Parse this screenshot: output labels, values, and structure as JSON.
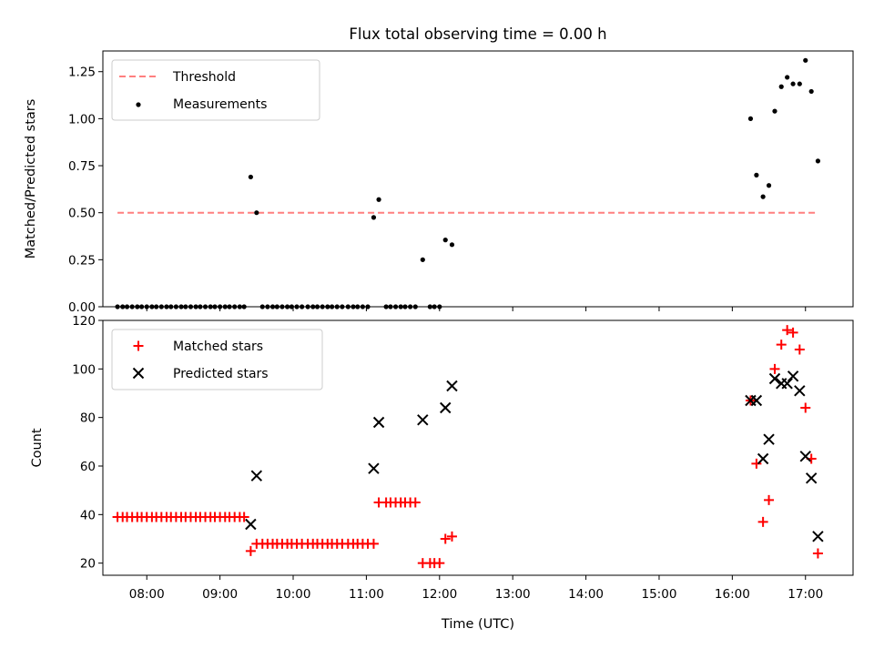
{
  "chart_data": [
    {
      "type": "scatter",
      "title": "Flux total observing time = 0.00 h",
      "ylabel": "Matched/Predicted stars",
      "ylim": [
        0,
        1.36
      ],
      "yticks": [
        0.0,
        0.25,
        0.5,
        0.75,
        1.0,
        1.25
      ],
      "yticklabels": [
        "0.00",
        "0.25",
        "0.50",
        "0.75",
        "1.00",
        "1.25"
      ],
      "xlim": [
        7.4,
        17.65
      ],
      "legend_position": "top-left",
      "threshold": {
        "name": "Threshold",
        "value": 0.5,
        "x_range": [
          7.6,
          17.15
        ],
        "color": "#ff7f7f"
      },
      "series": [
        {
          "name": "Measurements",
          "color": "#000000",
          "x": [
            7.6,
            7.67,
            7.73,
            7.8,
            7.87,
            7.93,
            8.0,
            8.07,
            8.13,
            8.2,
            8.27,
            8.33,
            8.4,
            8.47,
            8.53,
            8.6,
            8.67,
            8.73,
            8.8,
            8.87,
            8.93,
            9.0,
            9.07,
            9.13,
            9.2,
            9.27,
            9.33,
            9.42,
            9.5,
            9.58,
            9.65,
            9.72,
            9.78,
            9.85,
            9.92,
            9.98,
            10.05,
            10.12,
            10.2,
            10.27,
            10.33,
            10.4,
            10.47,
            10.53,
            10.6,
            10.67,
            10.75,
            10.82,
            10.88,
            10.95,
            11.02,
            11.1,
            11.17,
            11.27,
            11.33,
            11.4,
            11.47,
            11.53,
            11.6,
            11.67,
            11.77,
            11.87,
            11.93,
            12.0,
            12.08,
            12.17,
            16.25,
            16.33,
            16.42,
            16.5,
            16.58,
            16.67,
            16.75,
            16.83,
            16.92,
            17.0,
            17.08,
            17.17
          ],
          "y": [
            0,
            0,
            0,
            0,
            0,
            0,
            0,
            0,
            0,
            0,
            0,
            0,
            0,
            0,
            0,
            0,
            0,
            0,
            0,
            0,
            0,
            0,
            0,
            0,
            0,
            0,
            0,
            0.69,
            0.5,
            0,
            0,
            0,
            0,
            0,
            0,
            0,
            0,
            0,
            0,
            0,
            0,
            0,
            0,
            0,
            0,
            0,
            0,
            0,
            0,
            0,
            0,
            0.475,
            0.57,
            0,
            0,
            0,
            0,
            0,
            0,
            0,
            0.25,
            0,
            0,
            0,
            0.355,
            0.33,
            1.0,
            0.7,
            0.585,
            0.645,
            1.04,
            1.17,
            1.22,
            1.185,
            1.185,
            1.31,
            1.145,
            0.775
          ]
        }
      ]
    },
    {
      "type": "scatter",
      "title": "",
      "xlabel": "Time (UTC)",
      "ylabel": "Count",
      "ylim": [
        15,
        120
      ],
      "yticks": [
        20,
        40,
        60,
        80,
        100,
        120
      ],
      "yticklabels": [
        "20",
        "40",
        "60",
        "80",
        "100",
        "120"
      ],
      "xlim": [
        7.4,
        17.65
      ],
      "xticks": [
        8,
        9,
        10,
        11,
        12,
        13,
        14,
        15,
        16,
        17
      ],
      "xticklabels": [
        "08:00",
        "09:00",
        "10:00",
        "11:00",
        "12:00",
        "13:00",
        "14:00",
        "15:00",
        "16:00",
        "17:00"
      ],
      "legend_position": "top-left",
      "series": [
        {
          "name": "Matched stars",
          "marker": "plus",
          "color": "#ff0000",
          "x": [
            7.6,
            7.67,
            7.73,
            7.8,
            7.87,
            7.93,
            8.0,
            8.07,
            8.13,
            8.2,
            8.27,
            8.33,
            8.4,
            8.47,
            8.53,
            8.6,
            8.67,
            8.73,
            8.8,
            8.87,
            8.93,
            9.0,
            9.07,
            9.13,
            9.2,
            9.27,
            9.33,
            9.42,
            9.5,
            9.58,
            9.65,
            9.72,
            9.78,
            9.85,
            9.92,
            9.98,
            10.05,
            10.12,
            10.2,
            10.27,
            10.33,
            10.4,
            10.47,
            10.53,
            10.6,
            10.67,
            10.75,
            10.82,
            10.88,
            10.95,
            11.02,
            11.1,
            11.17,
            11.27,
            11.33,
            11.4,
            11.47,
            11.53,
            11.6,
            11.67,
            11.77,
            11.87,
            11.93,
            12.0,
            12.08,
            12.17,
            16.25,
            16.33,
            16.42,
            16.5,
            16.58,
            16.67,
            16.75,
            16.83,
            16.92,
            17.0,
            17.08,
            17.17
          ],
          "y": [
            39,
            39,
            39,
            39,
            39,
            39,
            39,
            39,
            39,
            39,
            39,
            39,
            39,
            39,
            39,
            39,
            39,
            39,
            39,
            39,
            39,
            39,
            39,
            39,
            39,
            39,
            39,
            25,
            28,
            28,
            28,
            28,
            28,
            28,
            28,
            28,
            28,
            28,
            28,
            28,
            28,
            28,
            28,
            28,
            28,
            28,
            28,
            28,
            28,
            28,
            28,
            28,
            45,
            45,
            45,
            45,
            45,
            45,
            45,
            45,
            20,
            20,
            20,
            20,
            30,
            31,
            87,
            61,
            37,
            46,
            100,
            110,
            116,
            115,
            108,
            84,
            63,
            24
          ]
        },
        {
          "name": "Predicted stars",
          "marker": "x",
          "color": "#000000",
          "x": [
            9.42,
            9.5,
            11.1,
            11.17,
            11.77,
            12.08,
            12.17,
            16.25,
            16.33,
            16.42,
            16.5,
            16.58,
            16.67,
            16.75,
            16.83,
            16.92,
            17.0,
            17.08,
            17.17
          ],
          "y": [
            36,
            56,
            59,
            78,
            79,
            84,
            93,
            87,
            87,
            63,
            71,
            96,
            94,
            94,
            97,
            91,
            64,
            55,
            31
          ]
        }
      ]
    }
  ]
}
